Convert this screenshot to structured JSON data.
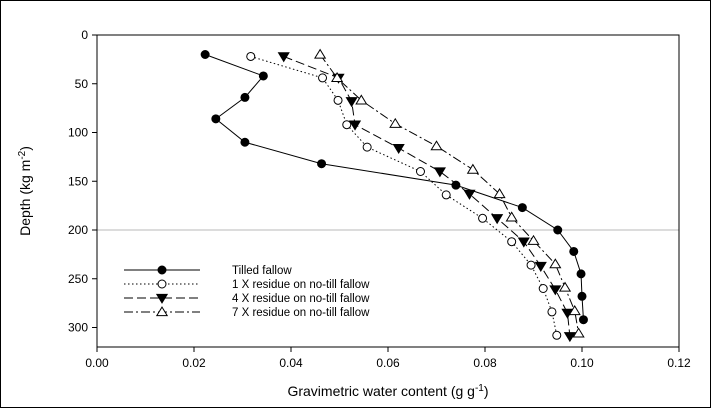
{
  "chart_data": {
    "type": "line",
    "xlabel": "Gravimetric water content (g g",
    "xlabel_sup": "-1",
    "xlabel_end": ")",
    "ylabel": "Depth (kg m",
    "ylabel_sup": "-2",
    "ylabel_end": ")",
    "xlim": [
      0,
      0.12
    ],
    "ylim": [
      0,
      320
    ],
    "y_inverted": true,
    "xticks": [
      0.0,
      0.02,
      0.04,
      0.06,
      0.08,
      0.1,
      0.12
    ],
    "xtick_labels": [
      "0.00",
      "0.02",
      "0.04",
      "0.06",
      "0.08",
      "0.10",
      "0.12"
    ],
    "yticks": [
      0,
      50,
      100,
      150,
      200,
      250,
      300
    ],
    "ytick_labels": [
      "0",
      "50",
      "100",
      "150",
      "200",
      "250",
      "300"
    ],
    "reference_line_y": 200,
    "legend_position": "lower-left",
    "series": [
      {
        "name": "Tilled fallow",
        "marker": "filled-circle",
        "line": "solid",
        "x": [
          0.0223,
          0.0343,
          0.0305,
          0.0245,
          0.0305,
          0.0463,
          0.074,
          0.0877,
          0.095,
          0.0983,
          0.0998,
          0.1,
          0.1003
        ],
        "y": [
          20,
          42,
          64,
          86,
          110,
          132,
          154,
          177,
          200,
          222,
          245,
          268,
          292
        ]
      },
      {
        "name": "1 X residue on no-till fallow",
        "marker": "open-circle",
        "line": "dotted",
        "x": [
          0.0317,
          0.0465,
          0.0497,
          0.0515,
          0.0557,
          0.0667,
          0.072,
          0.0795,
          0.0855,
          0.0895,
          0.092,
          0.0938,
          0.0948
        ],
        "y": [
          22,
          44,
          67,
          92,
          115,
          140,
          164,
          188,
          212,
          236,
          260,
          284,
          308
        ]
      },
      {
        "name": "4 X residue on no-till fallow",
        "marker": "filled-triangle-down",
        "line": "dashed",
        "x": [
          0.0385,
          0.0498,
          0.0525,
          0.0532,
          0.0622,
          0.0707,
          0.0768,
          0.0825,
          0.088,
          0.0915,
          0.0945,
          0.097,
          0.0975
        ],
        "y": [
          22,
          44,
          68,
          92,
          116,
          140,
          163,
          188,
          212,
          237,
          261,
          285,
          309
        ]
      },
      {
        "name": "7 X residue on no-till fallow",
        "marker": "open-triangle-up",
        "line": "dash-dot",
        "x": [
          0.046,
          0.0495,
          0.0545,
          0.0615,
          0.07,
          0.0775,
          0.083,
          0.0855,
          0.09,
          0.0945,
          0.0965,
          0.0985,
          0.0993
        ],
        "y": [
          20,
          44,
          67,
          91,
          114,
          138,
          163,
          187,
          211,
          235,
          259,
          283,
          306
        ]
      }
    ]
  }
}
